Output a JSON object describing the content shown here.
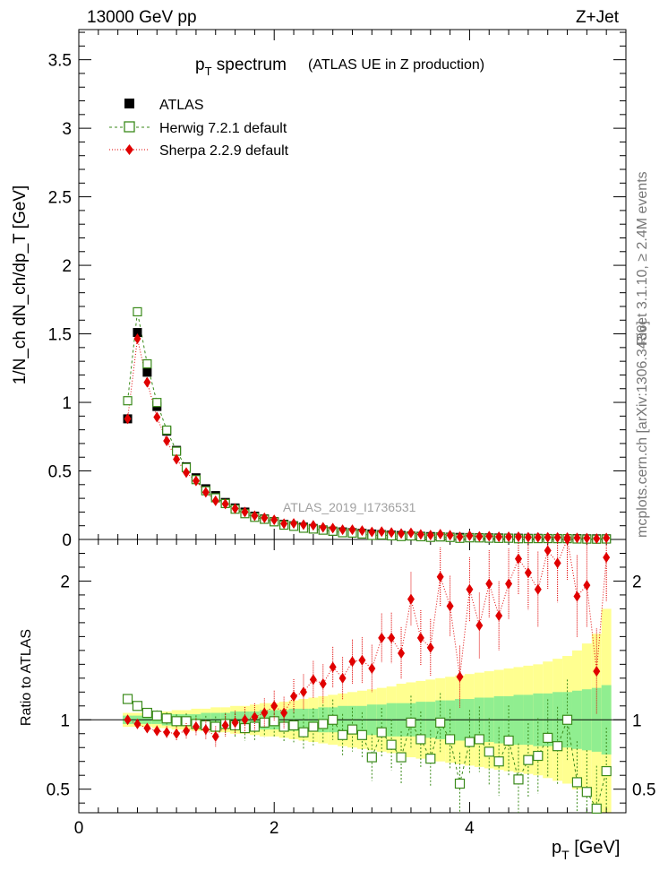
{
  "header": {
    "left": "13000 GeV pp",
    "right": "Z+Jet"
  },
  "side_text": {
    "rivet": "Rivet 3.1.10, ≥ 2.4M events",
    "mcplots": "mcplots.cern.ch [arXiv:1306.3436]"
  },
  "chart_data": {
    "type": "scatter",
    "title": {
      "main": "p",
      "sub": "T",
      "rest": " spectrum",
      "paren": "(ATLAS UE in Z production)"
    },
    "analysis_label": "ATLAS_2019_I1736531",
    "xlabel": {
      "main": "p",
      "sub": "T",
      "rest": " [GeV]"
    },
    "ylabel_top": "1/N_ch dN_ch/dp_T [GeV]",
    "ylabel_ratio": "Ratio to ATLAS",
    "xlim": [
      0,
      5.6
    ],
    "ylim_top": [
      0,
      3.72
    ],
    "ylim_ratio": [
      0.33,
      2.3
    ],
    "x_ticks": [
      0,
      2,
      4
    ],
    "y_ticks_top": [
      "0",
      "0.5",
      "1",
      "1.5",
      "2",
      "2.5",
      "3",
      "3.5"
    ],
    "y_ticks_ratio": [
      "0.5",
      "1",
      "2"
    ],
    "legend": [
      "ATLAS",
      "Herwig 7.2.1 default",
      "Sherpa 2.2.9 default"
    ],
    "colors": {
      "atlas": "#000000",
      "herwig": "#3a8a1a",
      "sherpa": "#e00000",
      "band_inner": "#90ee90",
      "band_outer": "#ffff90"
    },
    "x": [
      0.5,
      0.6,
      0.7,
      0.8,
      0.9,
      1.0,
      1.1,
      1.2,
      1.3,
      1.4,
      1.5,
      1.6,
      1.7,
      1.8,
      1.9,
      2.0,
      2.1,
      2.2,
      2.3,
      2.4,
      2.5,
      2.6,
      2.7,
      2.8,
      2.9,
      3.0,
      3.1,
      3.2,
      3.3,
      3.4,
      3.5,
      3.6,
      3.7,
      3.8,
      3.9,
      4.0,
      4.1,
      4.2,
      4.3,
      4.4,
      4.5,
      4.6,
      4.7,
      4.8,
      4.9,
      5.0,
      5.1,
      5.2,
      5.3,
      5.4
    ],
    "series": [
      {
        "name": "ATLAS",
        "values": [
          0.88,
          1.51,
          1.22,
          0.97,
          0.79,
          0.65,
          0.53,
          0.45,
          0.37,
          0.32,
          0.27,
          0.23,
          0.2,
          0.17,
          0.15,
          0.13,
          0.11,
          0.1,
          0.09,
          0.08,
          0.07,
          0.06,
          0.055,
          0.05,
          0.045,
          0.04,
          0.036,
          0.032,
          0.029,
          0.026,
          0.023,
          0.021,
          0.019,
          0.017,
          0.015,
          0.014,
          0.013,
          0.012,
          0.011,
          0.01,
          0.009,
          0.008,
          0.008,
          0.007,
          0.007,
          0.006,
          0.006,
          0.005,
          0.005,
          0.005
        ]
      },
      {
        "name": "Herwig 7.2.1 default",
        "ratio": [
          1.15,
          1.1,
          1.05,
          1.03,
          1.01,
          0.99,
          0.99,
          0.97,
          0.96,
          0.95,
          0.97,
          0.96,
          0.94,
          0.95,
          0.98,
          0.99,
          0.95,
          0.96,
          0.91,
          0.95,
          0.97,
          1.0,
          0.89,
          0.93,
          0.89,
          0.73,
          0.91,
          0.82,
          0.73,
          0.98,
          0.86,
          0.72,
          0.98,
          0.86,
          0.54,
          0.84,
          0.86,
          0.77,
          0.7,
          0.85,
          0.57,
          0.71,
          0.74,
          0.87,
          0.81,
          1.0,
          0.55,
          0.48,
          0.36,
          0.63
        ]
      },
      {
        "name": "Sherpa 2.2.9 default",
        "ratio": [
          1.0,
          0.97,
          0.94,
          0.92,
          0.91,
          0.9,
          0.92,
          0.95,
          0.93,
          0.88,
          0.96,
          0.98,
          1.0,
          1.02,
          1.05,
          1.1,
          1.05,
          1.17,
          1.2,
          1.29,
          1.26,
          1.38,
          1.3,
          1.42,
          1.43,
          1.37,
          1.59,
          1.59,
          1.48,
          1.87,
          1.59,
          1.52,
          2.03,
          1.82,
          1.31,
          1.94,
          1.68,
          1.98,
          1.75,
          1.98,
          2.16,
          2.06,
          1.94,
          2.22,
          2.13,
          2.3,
          1.89,
          1.97,
          1.35,
          2.17
        ]
      }
    ],
    "band_inner": [
      0.03,
      0.03,
      0.03,
      0.03,
      0.04,
      0.04,
      0.04,
      0.04,
      0.05,
      0.05,
      0.05,
      0.06,
      0.06,
      0.06,
      0.07,
      0.07,
      0.07,
      0.08,
      0.08,
      0.08,
      0.09,
      0.09,
      0.1,
      0.1,
      0.1,
      0.11,
      0.11,
      0.12,
      0.12,
      0.12,
      0.13,
      0.13,
      0.14,
      0.14,
      0.15,
      0.15,
      0.16,
      0.16,
      0.17,
      0.17,
      0.18,
      0.18,
      0.19,
      0.19,
      0.2,
      0.2,
      0.21,
      0.22,
      0.23,
      0.25
    ],
    "band_outer": [
      0.05,
      0.05,
      0.05,
      0.06,
      0.06,
      0.07,
      0.07,
      0.08,
      0.08,
      0.09,
      0.09,
      0.1,
      0.1,
      0.11,
      0.12,
      0.12,
      0.13,
      0.14,
      0.15,
      0.16,
      0.17,
      0.18,
      0.19,
      0.2,
      0.21,
      0.22,
      0.23,
      0.24,
      0.26,
      0.27,
      0.28,
      0.29,
      0.3,
      0.31,
      0.32,
      0.33,
      0.34,
      0.35,
      0.36,
      0.37,
      0.38,
      0.39,
      0.4,
      0.42,
      0.44,
      0.46,
      0.5,
      0.55,
      0.62,
      0.8
    ]
  }
}
